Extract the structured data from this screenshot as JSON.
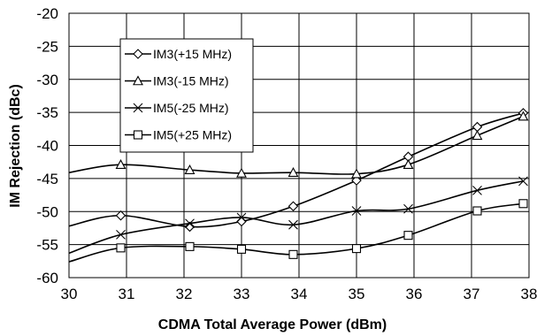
{
  "chart_data": {
    "type": "line",
    "title": "",
    "xlabel": "CDMA Total Average Power (dBm)",
    "ylabel": "IM Rejection (dBc)",
    "xlim": [
      30,
      38
    ],
    "ylim": [
      -60,
      -20
    ],
    "xticks": [
      30,
      31,
      32,
      33,
      34,
      35,
      36,
      37,
      38
    ],
    "yticks": [
      -20,
      -25,
      -30,
      -35,
      -40,
      -45,
      -50,
      -55,
      -60
    ],
    "grid": true,
    "legend_position": "top-left-inside",
    "series": [
      {
        "name": "IM3(+15 MHz)",
        "marker": "diamond",
        "x": [
          30,
          30.9,
          32.1,
          33.0,
          33.9,
          35.0,
          35.9,
          37.1,
          37.9
        ],
        "y": [
          -52.2,
          -50.6,
          -52.3,
          -51.5,
          -49.2,
          -45.3,
          -41.7,
          -37.2,
          -35.1
        ]
      },
      {
        "name": "IM3(-15 MHz)",
        "marker": "triangle",
        "x": [
          30,
          30.9,
          32.1,
          33.0,
          33.9,
          35.0,
          35.9,
          37.1,
          37.9
        ],
        "y": [
          -44.1,
          -42.9,
          -43.7,
          -44.2,
          -44.1,
          -44.3,
          -42.9,
          -38.5,
          -35.6
        ]
      },
      {
        "name": "IM5(-25 MHz)",
        "marker": "x",
        "x": [
          30,
          30.9,
          32.1,
          33.0,
          33.9,
          35.0,
          35.9,
          37.1,
          37.9
        ],
        "y": [
          -56.3,
          -53.5,
          -51.8,
          -50.9,
          -52.0,
          -49.9,
          -49.6,
          -46.8,
          -45.4
        ]
      },
      {
        "name": "IM5(+25 MHz)",
        "marker": "square",
        "x": [
          30,
          30.9,
          32.1,
          33.0,
          33.9,
          35.0,
          35.9,
          37.1,
          37.9
        ],
        "y": [
          -57.6,
          -55.5,
          -55.3,
          -55.7,
          -56.5,
          -55.6,
          -53.6,
          -49.9,
          -48.8
        ]
      }
    ]
  }
}
